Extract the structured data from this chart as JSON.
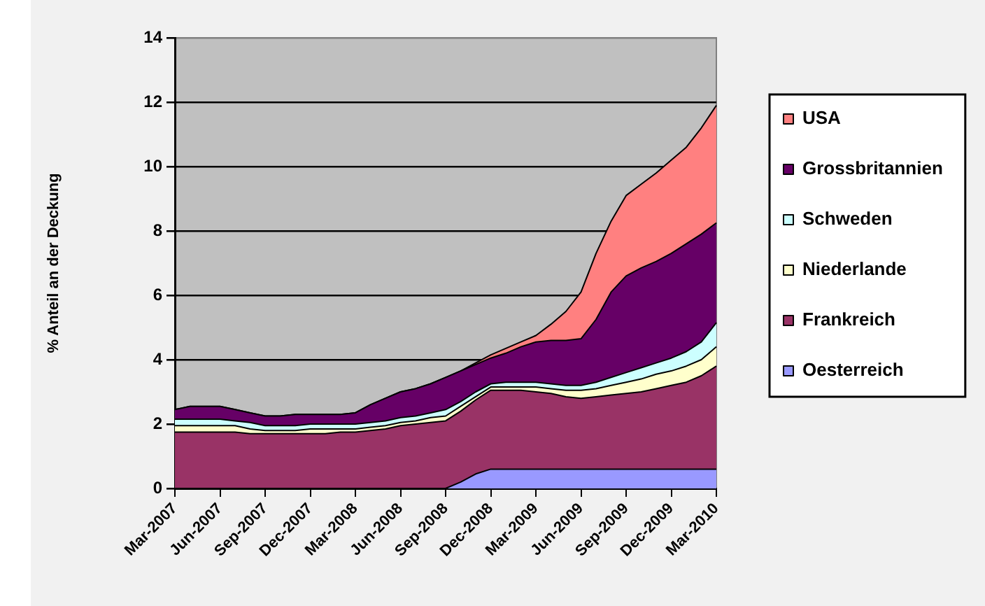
{
  "chart_data": {
    "type": "area",
    "stacked": true,
    "ylabel": "% Anteil an der Deckung",
    "categories": [
      "Mar-2007",
      null,
      null,
      "Jun-2007",
      null,
      null,
      "Sep-2007",
      null,
      null,
      "Dec-2007",
      null,
      null,
      "Mar-2008",
      null,
      null,
      "Jun-2008",
      null,
      null,
      "Sep-2008",
      null,
      null,
      "Dec-2008",
      null,
      null,
      "Mar-2009",
      null,
      null,
      "Jun-2009",
      null,
      null,
      "Sep-2009",
      null,
      null,
      "Dec-2009",
      null,
      null,
      "Mar-2010"
    ],
    "series": [
      {
        "name": "Oesterreich",
        "color": "#9999ff",
        "values": [
          0,
          0,
          0,
          0,
          0,
          0,
          0,
          0,
          0,
          0,
          0,
          0,
          0,
          0,
          0,
          0,
          0,
          0,
          0,
          0.2,
          0.45,
          0.6,
          0.6,
          0.6,
          0.6,
          0.6,
          0.6,
          0.6,
          0.6,
          0.6,
          0.6,
          0.6,
          0.6,
          0.6,
          0.6,
          0.6,
          0.6
        ]
      },
      {
        "name": "Frankreich",
        "color": "#993366",
        "values": [
          1.75,
          1.75,
          1.75,
          1.75,
          1.75,
          1.7,
          1.7,
          1.7,
          1.7,
          1.7,
          1.7,
          1.75,
          1.75,
          1.8,
          1.85,
          1.95,
          2.0,
          2.05,
          2.1,
          2.2,
          2.3,
          2.45,
          2.45,
          2.45,
          2.4,
          2.35,
          2.25,
          2.2,
          2.25,
          2.3,
          2.35,
          2.4,
          2.5,
          2.6,
          2.7,
          2.9,
          3.2
        ]
      },
      {
        "name": "Niederlande",
        "color": "#ffffcc",
        "values": [
          0.2,
          0.2,
          0.2,
          0.2,
          0.2,
          0.15,
          0.1,
          0.1,
          0.1,
          0.15,
          0.15,
          0.1,
          0.1,
          0.1,
          0.1,
          0.1,
          0.1,
          0.15,
          0.15,
          0.15,
          0.1,
          0.1,
          0.1,
          0.1,
          0.15,
          0.15,
          0.2,
          0.25,
          0.25,
          0.3,
          0.35,
          0.4,
          0.45,
          0.45,
          0.5,
          0.5,
          0.6
        ]
      },
      {
        "name": "Schweden",
        "color": "#ccffff",
        "values": [
          0.2,
          0.2,
          0.2,
          0.2,
          0.15,
          0.2,
          0.15,
          0.15,
          0.15,
          0.15,
          0.15,
          0.15,
          0.15,
          0.15,
          0.15,
          0.15,
          0.15,
          0.15,
          0.2,
          0.15,
          0.15,
          0.1,
          0.15,
          0.15,
          0.15,
          0.15,
          0.15,
          0.15,
          0.2,
          0.25,
          0.3,
          0.35,
          0.35,
          0.4,
          0.45,
          0.55,
          0.75
        ]
      },
      {
        "name": "Grossbritannien",
        "color": "#660066",
        "values": [
          0.3,
          0.4,
          0.4,
          0.4,
          0.35,
          0.3,
          0.3,
          0.3,
          0.35,
          0.3,
          0.3,
          0.3,
          0.35,
          0.55,
          0.7,
          0.8,
          0.85,
          0.9,
          1.0,
          0.95,
          0.85,
          0.8,
          0.9,
          1.1,
          1.25,
          1.35,
          1.4,
          1.45,
          1.95,
          2.65,
          3.0,
          3.1,
          3.15,
          3.25,
          3.35,
          3.35,
          3.1
        ]
      },
      {
        "name": "USA",
        "color": "#ff8080",
        "values": [
          0,
          0,
          0,
          0,
          0,
          0,
          0,
          0,
          0,
          0,
          0,
          0,
          0,
          0,
          0,
          0,
          0,
          0,
          0,
          0,
          0.05,
          0.1,
          0.15,
          0.15,
          0.2,
          0.5,
          0.9,
          1.45,
          2.05,
          2.2,
          2.5,
          2.6,
          2.75,
          2.9,
          3.0,
          3.3,
          3.65
        ]
      }
    ],
    "ylim": [
      0,
      14
    ],
    "yticks": [
      0,
      2,
      4,
      6,
      8,
      10,
      12,
      14
    ],
    "grid": "y",
    "legend": "right"
  }
}
